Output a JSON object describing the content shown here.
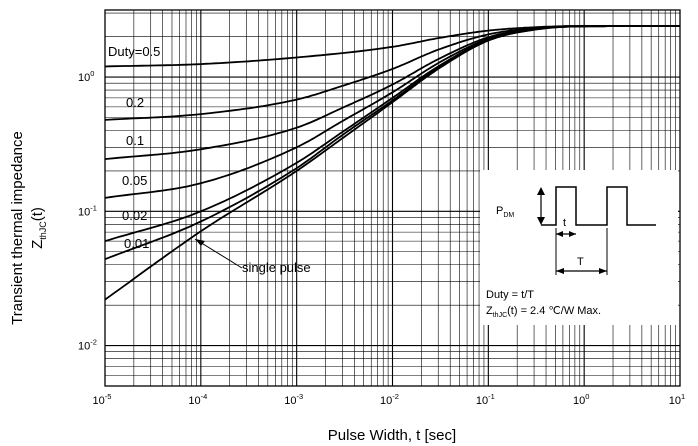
{
  "chart_data": {
    "type": "line",
    "xscale": "log",
    "yscale": "log",
    "xlim": [
      1e-05,
      10
    ],
    "ylim": [
      0.005,
      3.16
    ],
    "grid": true,
    "xlabel": "Pulse Width, t [sec]",
    "ylabel": {
      "line1": "Transient thermal impedance",
      "prefix": "Z",
      "sub": "thJC",
      "suffix": "(t)"
    },
    "x_ticks": [
      {
        "base": "10",
        "exp": "-5"
      },
      {
        "base": "10",
        "exp": "-4"
      },
      {
        "base": "10",
        "exp": "-3"
      },
      {
        "base": "10",
        "exp": "-2"
      },
      {
        "base": "10",
        "exp": "-1"
      },
      {
        "base": "10",
        "exp": "0"
      },
      {
        "base": "10",
        "exp": "1"
      }
    ],
    "y_ticks": [
      {
        "base": "10",
        "exp": "-2"
      },
      {
        "base": "10",
        "exp": "-1"
      },
      {
        "base": "10",
        "exp": "0"
      }
    ],
    "series": [
      {
        "name": "Duty=0.5",
        "points": [
          [
            1e-05,
            1.2
          ],
          [
            0.0001,
            1.25
          ],
          [
            0.001,
            1.4
          ],
          [
            0.01,
            1.68
          ],
          [
            0.03,
            1.95
          ],
          [
            0.1,
            2.22
          ],
          [
            0.3,
            2.35
          ],
          [
            1,
            2.4
          ],
          [
            10,
            2.4
          ]
        ]
      },
      {
        "name": "0.2",
        "points": [
          [
            1e-05,
            0.48
          ],
          [
            0.0001,
            0.53
          ],
          [
            0.001,
            0.68
          ],
          [
            0.003,
            0.86
          ],
          [
            0.01,
            1.15
          ],
          [
            0.03,
            1.6
          ],
          [
            0.1,
            2.08
          ],
          [
            0.3,
            2.32
          ],
          [
            1,
            2.4
          ],
          [
            10,
            2.4
          ]
        ]
      },
      {
        "name": "0.1",
        "points": [
          [
            1e-05,
            0.245
          ],
          [
            0.0001,
            0.29
          ],
          [
            0.001,
            0.42
          ],
          [
            0.003,
            0.59
          ],
          [
            0.01,
            0.88
          ],
          [
            0.03,
            1.36
          ],
          [
            0.1,
            1.98
          ],
          [
            0.3,
            2.3
          ],
          [
            1,
            2.4
          ],
          [
            10,
            2.4
          ]
        ]
      },
      {
        "name": "0.05",
        "points": [
          [
            1e-05,
            0.126
          ],
          [
            0.0001,
            0.162
          ],
          [
            0.001,
            0.3
          ],
          [
            0.003,
            0.47
          ],
          [
            0.01,
            0.77
          ],
          [
            0.03,
            1.27
          ],
          [
            0.1,
            1.93
          ],
          [
            0.3,
            2.28
          ],
          [
            1,
            2.39
          ],
          [
            10,
            2.4
          ]
        ]
      },
      {
        "name": "0.02",
        "points": [
          [
            1e-05,
            0.06
          ],
          [
            0.0001,
            0.1
          ],
          [
            0.001,
            0.23
          ],
          [
            0.003,
            0.39
          ],
          [
            0.01,
            0.7
          ],
          [
            0.03,
            1.2
          ],
          [
            0.1,
            1.9
          ],
          [
            0.3,
            2.27
          ],
          [
            1,
            2.39
          ],
          [
            10,
            2.4
          ]
        ]
      },
      {
        "name": "0.01",
        "points": [
          [
            1e-05,
            0.044
          ],
          [
            0.0001,
            0.084
          ],
          [
            0.001,
            0.21
          ],
          [
            0.003,
            0.37
          ],
          [
            0.01,
            0.67
          ],
          [
            0.03,
            1.17
          ],
          [
            0.1,
            1.88
          ],
          [
            0.3,
            2.26
          ],
          [
            1,
            2.39
          ],
          [
            10,
            2.4
          ]
        ]
      },
      {
        "name": "single pulse",
        "points": [
          [
            1e-05,
            0.022
          ],
          [
            0.0001,
            0.071
          ],
          [
            0.001,
            0.2
          ],
          [
            0.003,
            0.35
          ],
          [
            0.01,
            0.65
          ],
          [
            0.03,
            1.15
          ],
          [
            0.1,
            1.87
          ],
          [
            0.3,
            2.25
          ],
          [
            1,
            2.39
          ],
          [
            10,
            2.4
          ]
        ]
      }
    ],
    "annotations": {
      "single_pulse": "single pulse",
      "pdm": {
        "main": "P",
        "sub": "DM"
      },
      "t_label": "t",
      "T_label": "T",
      "duty_text": "Duty = t/T",
      "z_prefix": "Z",
      "z_sub": "thJC",
      "z_suffix": "(t) = 2.4 ℃/W Max."
    }
  }
}
